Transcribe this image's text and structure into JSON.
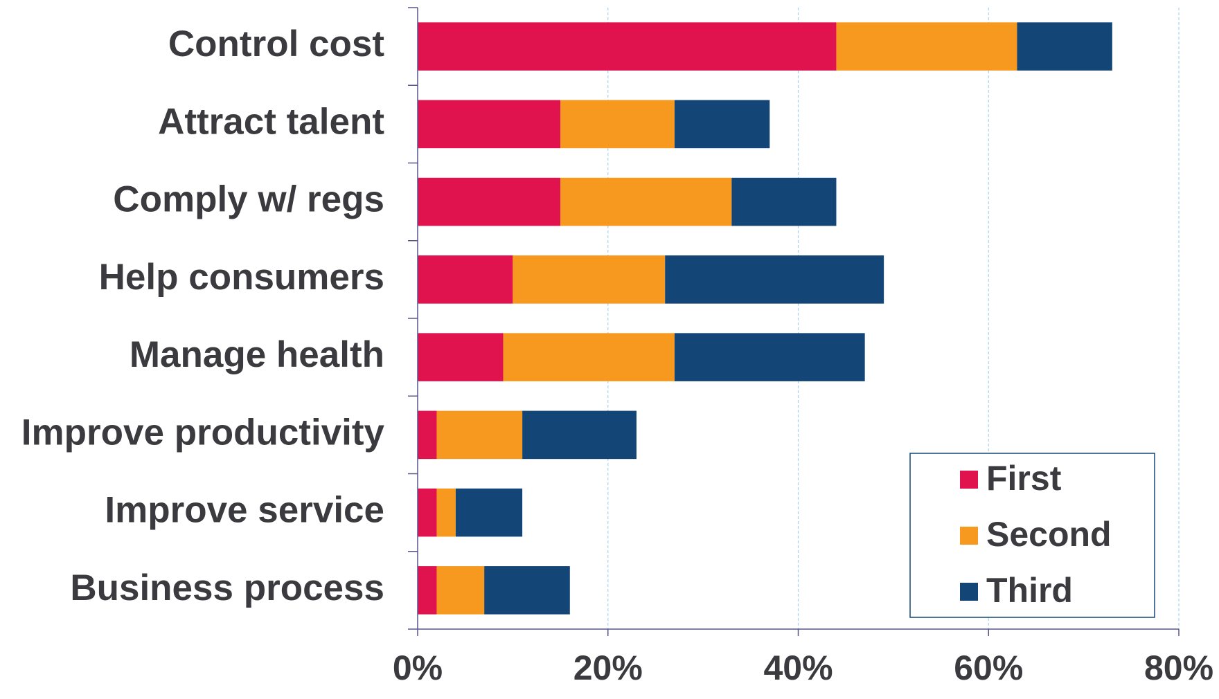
{
  "chart_data": {
    "type": "stacked_bar_horizontal",
    "categories": [
      "Control cost",
      "Attract talent",
      "Comply w/ regs",
      "Help consumers",
      "Manage health",
      "Improve productivity",
      "Improve service",
      "Business process"
    ],
    "series": [
      {
        "name": "First",
        "color": "#e0134f",
        "values": [
          44,
          15,
          15,
          10,
          9,
          2,
          2,
          2
        ]
      },
      {
        "name": "Second",
        "color": "#f7981f",
        "values": [
          19,
          12,
          18,
          16,
          18,
          9,
          2,
          5
        ]
      },
      {
        "name": "Third",
        "color": "#134677",
        "values": [
          10,
          10,
          11,
          23,
          20,
          12,
          7,
          9
        ]
      }
    ],
    "xlim": [
      0,
      80
    ],
    "xticks": [
      {
        "value": 0,
        "label": "0%"
      },
      {
        "value": 20,
        "label": "20%"
      },
      {
        "value": 40,
        "label": "40%"
      },
      {
        "value": 60,
        "label": "60%"
      },
      {
        "value": 80,
        "label": "80%"
      }
    ],
    "grid": true,
    "legend_position": "lower right"
  }
}
